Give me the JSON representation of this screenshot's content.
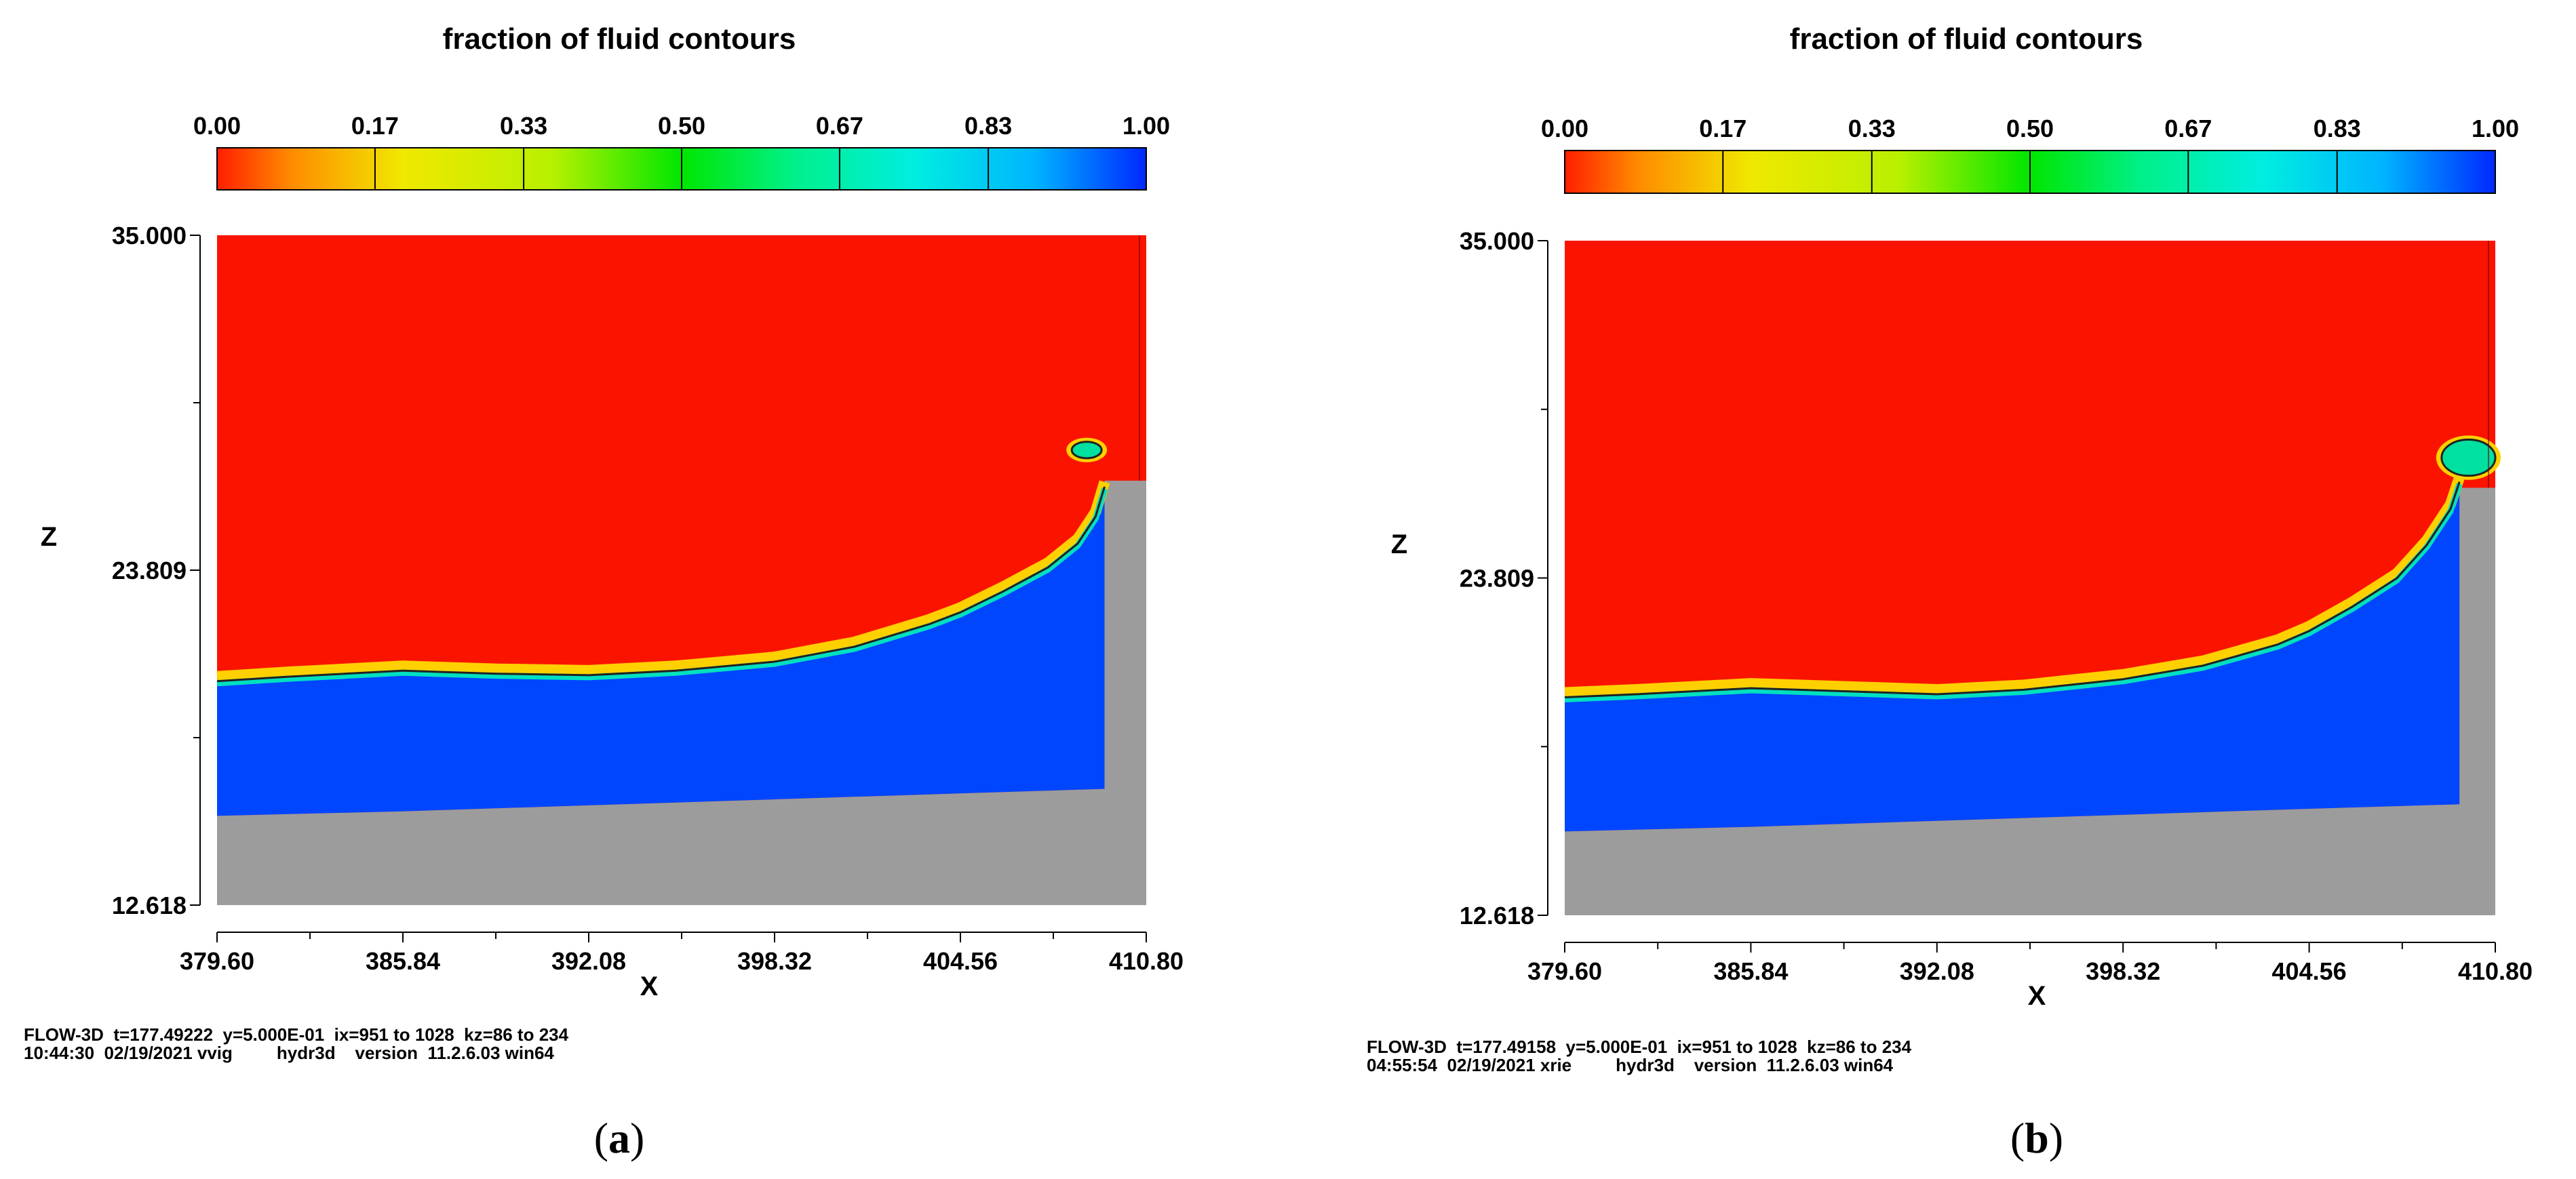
{
  "chart_data": [
    {
      "type": "heatmap",
      "title": "fraction of fluid contours",
      "colorbar": {
        "ticks": [
          "0.00",
          "0.17",
          "0.33",
          "0.50",
          "0.67",
          "0.83",
          "1.00"
        ],
        "range": [
          0,
          1
        ]
      },
      "xlabel": "X",
      "ylabel": "Z",
      "xlim": [
        379.6,
        410.8
      ],
      "ylim": [
        12.618,
        35.0
      ],
      "xticks": [
        "379.60",
        "385.84",
        "392.08",
        "398.32",
        "404.56",
        "410.80"
      ],
      "yticks": [
        "12.618",
        "23.809",
        "35.000"
      ],
      "regions": {
        "air_color": "#fa1400",
        "water_color": "#0046ff",
        "obstacle_color": "#9c9c9c",
        "free_surface": {
          "x": [
            379.6,
            382.0,
            385.84,
            389.0,
            392.08,
            395.0,
            398.32,
            401.0,
            403.5,
            404.56,
            406.0,
            407.5,
            408.5,
            409.1,
            409.4
          ],
          "z": [
            20.1,
            20.25,
            20.45,
            20.35,
            20.3,
            20.45,
            20.75,
            21.25,
            22.0,
            22.4,
            23.1,
            23.9,
            24.7,
            25.6,
            26.6
          ]
        },
        "bed": {
          "x": [
            379.6,
            385.84,
            392.08,
            398.32,
            404.56,
            409.4
          ],
          "z": [
            15.6,
            15.75,
            15.95,
            16.15,
            16.35,
            16.5
          ]
        },
        "wall": {
          "x": [
            409.4,
            410.8
          ],
          "z_top": 26.8
        },
        "splash": {
          "x": [
            408.3,
            409.3
          ],
          "z": [
            27.55,
            28.1
          ]
        }
      },
      "footer": [
        "FLOW-3D  t=177.49222  y=5.000E-01  ix=951 to 1028  kz=86 to 234",
        "10:44:30  02/19/2021 vvig         hydr3d    version  11.2.6.03 win64"
      ],
      "caption_letter": "a"
    },
    {
      "type": "heatmap",
      "title": "fraction of fluid contours",
      "colorbar": {
        "ticks": [
          "0.00",
          "0.17",
          "0.33",
          "0.50",
          "0.67",
          "0.83",
          "1.00"
        ],
        "range": [
          0,
          1
        ]
      },
      "xlabel": "X",
      "ylabel": "Z",
      "xlim": [
        379.6,
        410.8
      ],
      "ylim": [
        12.618,
        35.0
      ],
      "xticks": [
        "379.60",
        "385.84",
        "392.08",
        "398.32",
        "404.56",
        "410.80"
      ],
      "yticks": [
        "12.618",
        "23.809",
        "35.000"
      ],
      "regions": {
        "air_color": "#fa1400",
        "water_color": "#0046ff",
        "obstacle_color": "#9c9c9c",
        "free_surface": {
          "x": [
            379.6,
            382.0,
            385.84,
            389.0,
            392.08,
            395.0,
            398.32,
            401.0,
            403.5,
            404.56,
            406.0,
            407.5,
            408.5,
            409.3,
            409.6
          ],
          "z": [
            19.85,
            19.95,
            20.15,
            20.05,
            19.95,
            20.1,
            20.45,
            20.9,
            21.6,
            22.05,
            22.85,
            23.8,
            24.9,
            26.1,
            27.0
          ]
        },
        "bed": {
          "x": [
            379.6,
            385.84,
            392.08,
            398.32,
            404.56,
            409.6
          ],
          "z": [
            15.4,
            15.55,
            15.75,
            15.95,
            16.15,
            16.3
          ]
        },
        "wall": {
          "x": [
            409.6,
            410.8
          ],
          "z_top": 26.8
        },
        "splash": {
          "x": [
            409.0,
            410.8
          ],
          "z": [
            27.2,
            28.4
          ]
        }
      },
      "footer": [
        "FLOW-3D  t=177.49158  y=5.000E-01  ix=951 to 1028  kz=86 to 234",
        "04:55:54  02/19/2021 xrie         hydr3d    version  11.2.6.03 win64"
      ],
      "caption_letter": "b"
    }
  ]
}
